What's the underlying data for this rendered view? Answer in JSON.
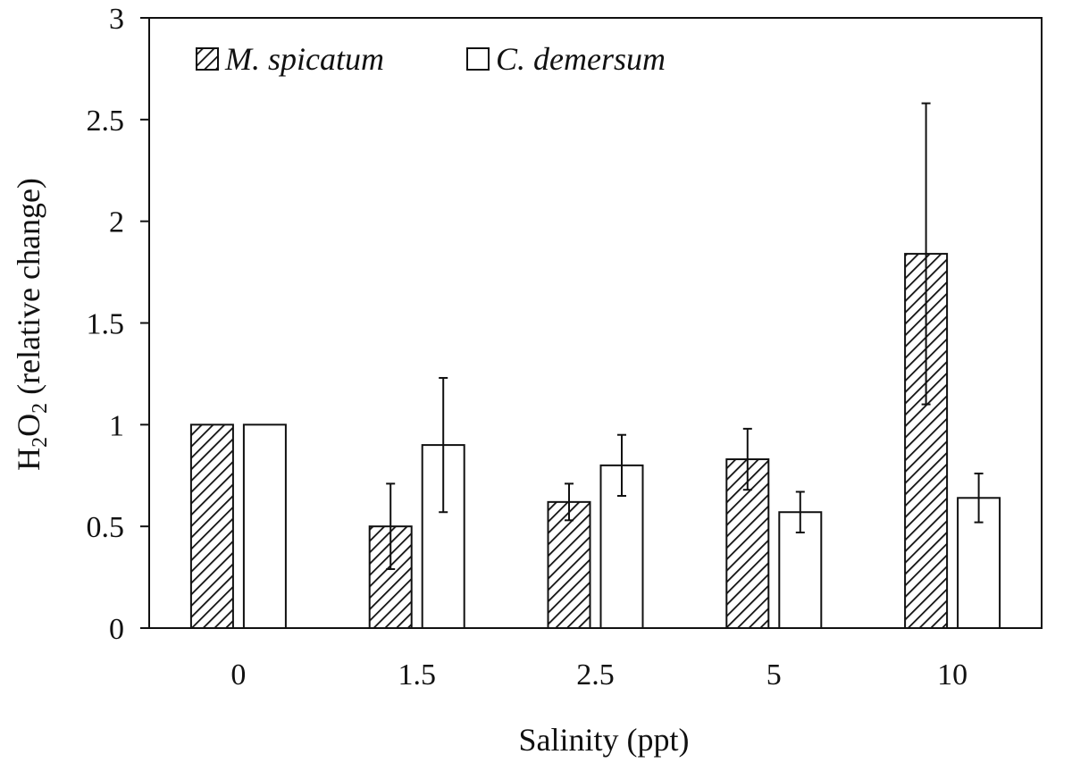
{
  "chart_data": {
    "type": "bar",
    "categories": [
      "0",
      "1.5",
      "2.5",
      "5",
      "10"
    ],
    "series": [
      {
        "name": "M. spicatum",
        "fill": "hatched",
        "values": [
          1.0,
          0.5,
          0.62,
          0.83,
          1.84
        ],
        "errors": [
          null,
          0.21,
          0.09,
          0.15,
          0.74
        ]
      },
      {
        "name": "C. demersum",
        "fill": "white",
        "values": [
          1.0,
          0.9,
          0.8,
          0.57,
          0.64
        ],
        "errors": [
          null,
          0.33,
          0.15,
          0.1,
          0.12
        ]
      }
    ],
    "xlabel": "Salinity (ppt)",
    "ylabel_main": "H",
    "ylabel_sub1": "2",
    "ylabel_mid": "O",
    "ylabel_sub2": "2",
    "ylabel_rest": " (relative change)",
    "ylim": [
      0,
      3
    ],
    "yticks": [
      "0",
      "0.5",
      "1",
      "1.5",
      "2",
      "2.5",
      "3"
    ],
    "grid": false,
    "legend_position": "top-left",
    "colors": {
      "axis": "#111111",
      "bar_stroke": "#111111",
      "bar_fill": "#ffffff"
    }
  }
}
